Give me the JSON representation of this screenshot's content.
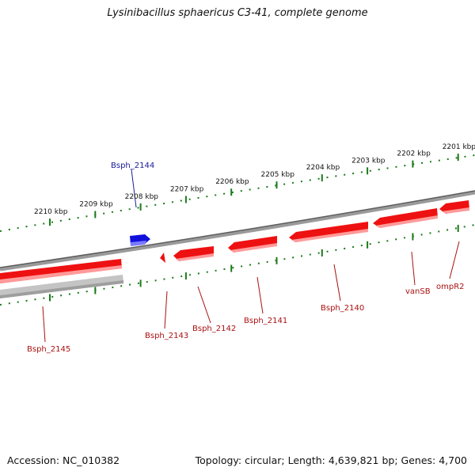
{
  "title": "Lysinibacillus sphaericus C3-41, complete genome",
  "accession": "Accession: NC_010382",
  "summary": "Topology: circular; Length: 4,639,821 bp; Genes: 4,700",
  "scale_ticks": [
    "2210 kbp",
    "2209 kbp",
    "2208 kbp",
    "2207 kbp",
    "2206 kbp",
    "2205 kbp",
    "2204 kbp",
    "2203 kbp",
    "2202 kbp",
    "2201 kbp"
  ],
  "genes": [
    {
      "label": "Bsph_2144",
      "strand": "+",
      "color": "#1010dd"
    },
    {
      "label": "Bsph_2145",
      "strand": "-",
      "color": "#dd1010"
    },
    {
      "label": "Bsph_2143",
      "strand": "-",
      "color": "#dd1010"
    },
    {
      "label": "Bsph_2142",
      "strand": "-",
      "color": "#dd1010"
    },
    {
      "label": "Bsph_2141",
      "strand": "-",
      "color": "#dd1010"
    },
    {
      "label": "Bsph_2140",
      "strand": "-",
      "color": "#dd1010"
    },
    {
      "label": "vanSB",
      "strand": "-",
      "color": "#dd1010"
    },
    {
      "label": "ompR2",
      "strand": "-",
      "color": "#dd1010"
    }
  ],
  "colors": {
    "backbone": "#777777",
    "tick": "#1a7a1a",
    "gene_minus": "#ee1111",
    "gene_plus": "#1010dd",
    "label_minus": "#aa1111",
    "label_plus": "#1a1a99",
    "grey_feature": "#b8b8b8"
  }
}
